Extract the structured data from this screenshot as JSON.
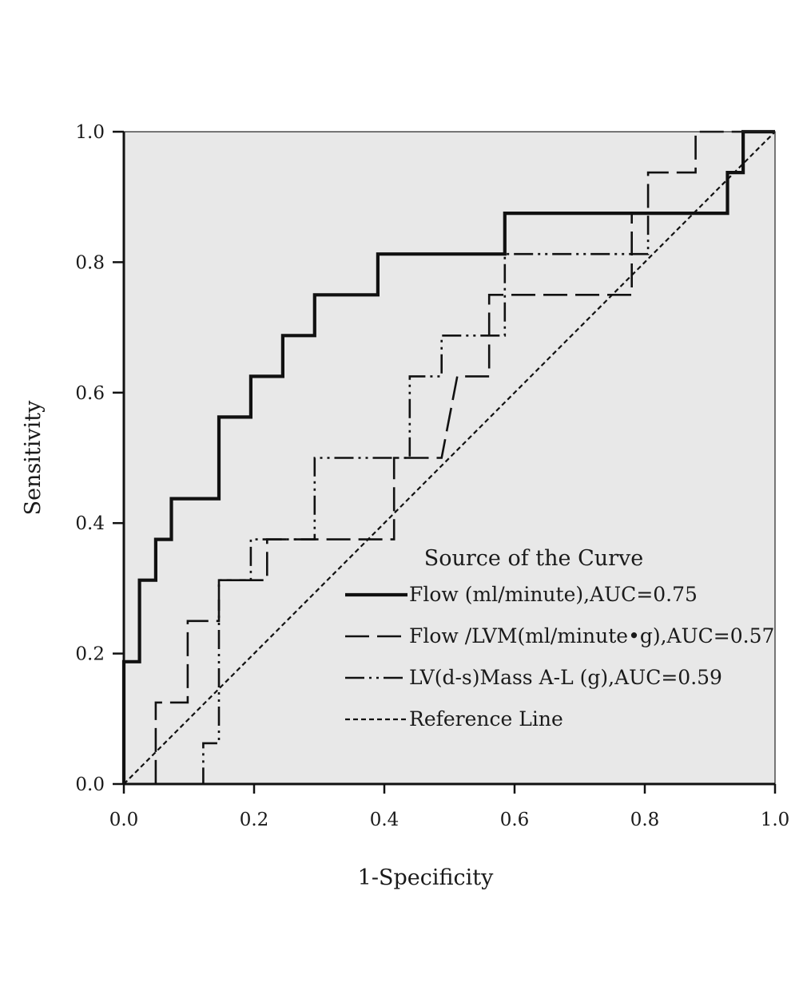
{
  "chart_data": {
    "type": "line",
    "xlabel": "1-Specificity",
    "ylabel": "Sensitivity",
    "xlim": [
      0,
      1
    ],
    "ylim": [
      0,
      1
    ],
    "x_ticks": [
      "0.0",
      "0.2",
      "0.4",
      "0.6",
      "0.8",
      "1.0"
    ],
    "y_ticks": [
      "0.0",
      "0.2",
      "0.4",
      "0.6",
      "0.8",
      "1.0"
    ],
    "grid": false,
    "background_color": "#e8e8e8",
    "legend": {
      "title": "Source of the Curve",
      "placement": "lower-right inside plot"
    },
    "series": [
      {
        "name": "Flow (ml/minute),AUC=0.75",
        "style": "solid-thick",
        "points": [
          [
            0,
            0
          ],
          [
            0,
            0.1875
          ],
          [
            0.024,
            0.1875
          ],
          [
            0.024,
            0.3125
          ],
          [
            0.049,
            0.3125
          ],
          [
            0.049,
            0.375
          ],
          [
            0.073,
            0.375
          ],
          [
            0.073,
            0.4375
          ],
          [
            0.146,
            0.4375
          ],
          [
            0.146,
            0.5625
          ],
          [
            0.195,
            0.5625
          ],
          [
            0.195,
            0.625
          ],
          [
            0.244,
            0.625
          ],
          [
            0.244,
            0.6875
          ],
          [
            0.293,
            0.6875
          ],
          [
            0.293,
            0.75
          ],
          [
            0.39,
            0.75
          ],
          [
            0.39,
            0.8125
          ],
          [
            0.585,
            0.8125
          ],
          [
            0.585,
            0.875
          ],
          [
            0.927,
            0.875
          ],
          [
            0.927,
            0.9375
          ],
          [
            0.951,
            0.9375
          ],
          [
            0.951,
            1.0
          ],
          [
            1.0,
            1.0
          ]
        ]
      },
      {
        "name": "Flow /LVM(ml/minute•g),AUC=0.57",
        "style": "long-dash",
        "points": [
          [
            0,
            0
          ],
          [
            0.049,
            0
          ],
          [
            0.049,
            0.125
          ],
          [
            0.098,
            0.125
          ],
          [
            0.098,
            0.25
          ],
          [
            0.146,
            0.25
          ],
          [
            0.146,
            0.3125
          ],
          [
            0.22,
            0.3125
          ],
          [
            0.22,
            0.375
          ],
          [
            0.415,
            0.375
          ],
          [
            0.415,
            0.5
          ],
          [
            0.488,
            0.5
          ],
          [
            0.5,
            0.5625
          ],
          [
            0.512,
            0.625
          ],
          [
            0.561,
            0.625
          ],
          [
            0.561,
            0.75
          ],
          [
            0.78,
            0.75
          ],
          [
            0.78,
            0.875
          ],
          [
            0.805,
            0.875
          ],
          [
            0.805,
            0.9375
          ],
          [
            0.878,
            0.9375
          ],
          [
            0.878,
            1.0
          ],
          [
            1.0,
            1.0
          ]
        ]
      },
      {
        "name": "LV(d-s)Mass A-L (g),AUC=0.59",
        "style": "dash-dot-dot",
        "points": [
          [
            0,
            0
          ],
          [
            0.122,
            0
          ],
          [
            0.122,
            0.0625
          ],
          [
            0.146,
            0.0625
          ],
          [
            0.146,
            0.3125
          ],
          [
            0.195,
            0.3125
          ],
          [
            0.195,
            0.375
          ],
          [
            0.293,
            0.375
          ],
          [
            0.293,
            0.5
          ],
          [
            0.439,
            0.5
          ],
          [
            0.439,
            0.625
          ],
          [
            0.488,
            0.625
          ],
          [
            0.488,
            0.6875
          ],
          [
            0.585,
            0.6875
          ],
          [
            0.585,
            0.8125
          ],
          [
            0.805,
            0.8125
          ],
          [
            0.805,
            0.875
          ],
          [
            0.927,
            0.875
          ],
          [
            0.927,
            0.9375
          ],
          [
            0.951,
            0.9375
          ],
          [
            0.951,
            1.0
          ],
          [
            1.0,
            1.0
          ]
        ]
      },
      {
        "name": "Reference Line",
        "style": "short-dash",
        "points": [
          [
            0,
            0
          ],
          [
            1,
            1
          ]
        ]
      }
    ]
  }
}
